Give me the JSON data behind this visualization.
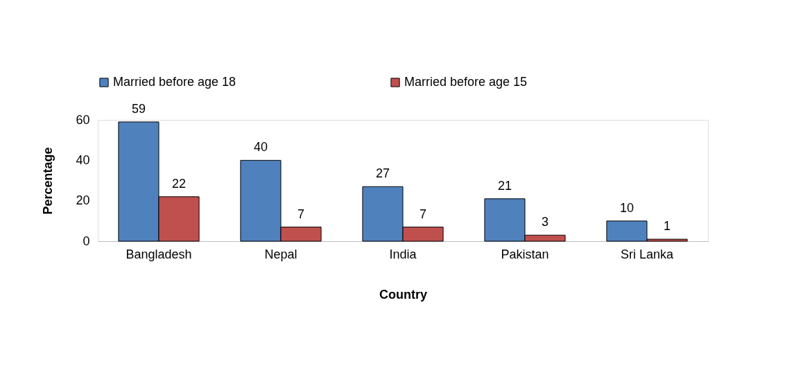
{
  "chart_data": {
    "type": "bar",
    "xlabel": "Country",
    "ylabel": "Percentage",
    "categories": [
      "Bangladesh",
      "Nepal",
      "India",
      "Pakistan",
      "Sri Lanka"
    ],
    "series": [
      {
        "name": "Married before age 18",
        "color": "#4f81bd",
        "values": [
          59,
          40,
          27,
          21,
          10
        ]
      },
      {
        "name": "Married before age 15",
        "color": "#c0504d",
        "values": [
          22,
          7,
          7,
          3,
          1
        ]
      }
    ],
    "ylim": [
      0,
      60
    ],
    "yticks": [
      0,
      20,
      40,
      60
    ],
    "grid": false,
    "legend": "top",
    "data_labels": true
  }
}
